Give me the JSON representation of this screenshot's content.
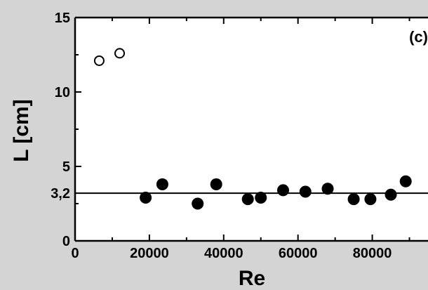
{
  "chart_data": {
    "type": "scatter",
    "title": "",
    "panel_label": "(c)",
    "xlabel": "Re",
    "ylabel": "L [cm]",
    "xlim": [
      0,
      95000
    ],
    "ylim": [
      0,
      15
    ],
    "x_ticks": [
      {
        "value": 0,
        "label": "0"
      },
      {
        "value": 20000,
        "label": "20000"
      },
      {
        "value": 40000,
        "label": "40000"
      },
      {
        "value": 60000,
        "label": "60000"
      },
      {
        "value": 80000,
        "label": "80000"
      }
    ],
    "y_ticks": [
      {
        "value": 0,
        "label": "0"
      },
      {
        "value": 5,
        "label": "5"
      },
      {
        "value": 10,
        "label": "10"
      },
      {
        "value": 15,
        "label": "15"
      }
    ],
    "reference_line": {
      "y": 3.2,
      "label": "3,2"
    },
    "grid": false,
    "series": [
      {
        "marker": "open-circle",
        "points": [
          {
            "x": 6500,
            "y": 12.1
          },
          {
            "x": 12000,
            "y": 12.6
          }
        ]
      },
      {
        "marker": "filled-circle",
        "points": [
          {
            "x": 19000,
            "y": 2.9
          },
          {
            "x": 23500,
            "y": 3.8
          },
          {
            "x": 33000,
            "y": 2.5
          },
          {
            "x": 38000,
            "y": 3.8
          },
          {
            "x": 46500,
            "y": 2.8
          },
          {
            "x": 50000,
            "y": 2.9
          },
          {
            "x": 56000,
            "y": 3.4
          },
          {
            "x": 62000,
            "y": 3.3
          },
          {
            "x": 68000,
            "y": 3.5
          },
          {
            "x": 75000,
            "y": 2.8
          },
          {
            "x": 79500,
            "y": 2.8
          },
          {
            "x": 85000,
            "y": 3.1
          },
          {
            "x": 89000,
            "y": 4.0
          }
        ]
      }
    ]
  }
}
